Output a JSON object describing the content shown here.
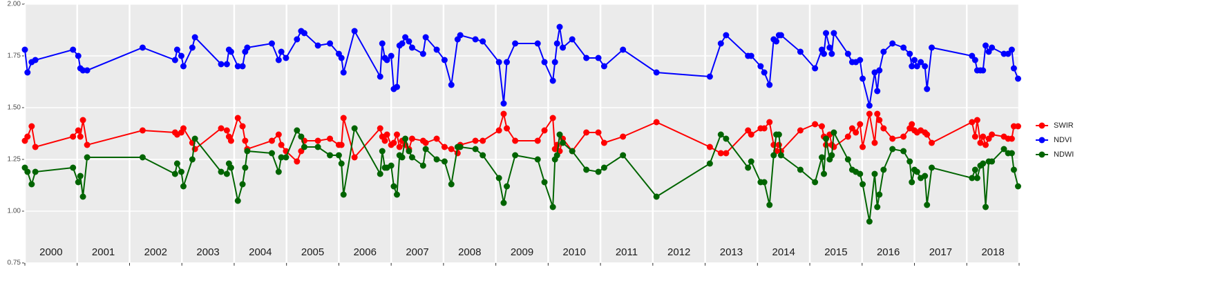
{
  "chart_data": {
    "type": "line",
    "x": [
      2000.0,
      2000.05,
      2000.13,
      2000.2,
      2000.92,
      2001.02,
      2001.06,
      2001.11,
      2001.19,
      2002.25,
      2002.87,
      2002.91,
      2002.99,
      2003.03,
      2003.2,
      2003.25,
      2003.75,
      2003.86,
      2003.9,
      2003.94,
      2004.07,
      2004.16,
      2004.21,
      2004.25,
      2004.72,
      2004.85,
      2004.9,
      2004.99,
      2005.2,
      2005.28,
      2005.34,
      2005.6,
      2005.83,
      2006.0,
      2006.05,
      2006.09,
      2006.3,
      2006.79,
      2006.83,
      2006.88,
      2006.92,
      2007.0,
      2007.05,
      2007.11,
      2007.16,
      2007.21,
      2007.27,
      2007.34,
      2007.4,
      2007.61,
      2007.66,
      2007.87,
      2008.02,
      2008.15,
      2008.27,
      2008.32,
      2008.61,
      2008.75,
      2009.06,
      2009.15,
      2009.21,
      2009.37,
      2009.8,
      2009.93,
      2010.09,
      2010.13,
      2010.17,
      2010.22,
      2010.28,
      2010.46,
      2010.73,
      2010.96,
      2011.07,
      2011.43,
      2012.07,
      2013.09,
      2013.3,
      2013.4,
      2013.82,
      2013.88,
      2014.06,
      2014.13,
      2014.23,
      2014.31,
      2014.36,
      2014.41,
      2014.45,
      2014.82,
      2015.1,
      2015.23,
      2015.27,
      2015.31,
      2015.38,
      2015.42,
      2015.46,
      2015.73,
      2015.81,
      2015.88,
      2015.96,
      2016.01,
      2016.14,
      2016.24,
      2016.29,
      2016.33,
      2016.41,
      2016.58,
      2016.79,
      2016.91,
      2016.95,
      2017.0,
      2017.05,
      2017.12,
      2017.2,
      2017.24,
      2017.33,
      2018.1,
      2018.16,
      2018.2,
      2018.26,
      2018.31,
      2018.36,
      2018.42,
      2018.48,
      2018.71,
      2018.79,
      2018.86,
      2018.9,
      2018.98
    ],
    "series": [
      {
        "name": "SWIR",
        "color": "#ff0000",
        "values": [
          1.34,
          1.36,
          1.41,
          1.31,
          1.36,
          1.39,
          1.36,
          1.44,
          1.32,
          1.39,
          1.38,
          1.37,
          1.38,
          1.4,
          1.33,
          1.3,
          1.4,
          1.39,
          1.36,
          1.34,
          1.45,
          1.41,
          1.34,
          1.3,
          1.34,
          1.37,
          1.32,
          1.29,
          1.24,
          1.29,
          1.34,
          1.34,
          1.35,
          1.32,
          1.32,
          1.45,
          1.26,
          1.4,
          1.36,
          1.34,
          1.37,
          1.32,
          1.33,
          1.37,
          1.31,
          1.34,
          1.32,
          1.3,
          1.35,
          1.34,
          1.33,
          1.35,
          1.31,
          1.3,
          1.28,
          1.32,
          1.34,
          1.34,
          1.39,
          1.47,
          1.4,
          1.34,
          1.34,
          1.39,
          1.45,
          1.3,
          1.32,
          1.29,
          1.35,
          1.29,
          1.38,
          1.38,
          1.33,
          1.36,
          1.43,
          1.31,
          1.28,
          1.28,
          1.39,
          1.37,
          1.4,
          1.4,
          1.43,
          1.32,
          1.29,
          1.32,
          1.29,
          1.39,
          1.42,
          1.41,
          1.36,
          1.32,
          1.37,
          1.32,
          1.31,
          1.36,
          1.4,
          1.38,
          1.42,
          1.31,
          1.47,
          1.33,
          1.47,
          1.44,
          1.4,
          1.35,
          1.36,
          1.4,
          1.42,
          1.39,
          1.38,
          1.39,
          1.38,
          1.37,
          1.33,
          1.43,
          1.36,
          1.44,
          1.33,
          1.36,
          1.32,
          1.35,
          1.37,
          1.36,
          1.35,
          1.35,
          1.41,
          1.41
        ]
      },
      {
        "name": "NDVI",
        "color": "#0000ff",
        "values": [
          1.78,
          1.67,
          1.72,
          1.73,
          1.78,
          1.75,
          1.69,
          1.68,
          1.68,
          1.79,
          1.73,
          1.78,
          1.75,
          1.7,
          1.79,
          1.84,
          1.71,
          1.71,
          1.78,
          1.77,
          1.7,
          1.7,
          1.77,
          1.79,
          1.81,
          1.73,
          1.77,
          1.74,
          1.83,
          1.87,
          1.86,
          1.8,
          1.81,
          1.76,
          1.74,
          1.67,
          1.87,
          1.65,
          1.81,
          1.74,
          1.73,
          1.75,
          1.59,
          1.6,
          1.8,
          1.81,
          1.84,
          1.82,
          1.79,
          1.76,
          1.84,
          1.78,
          1.73,
          1.61,
          1.83,
          1.85,
          1.83,
          1.82,
          1.72,
          1.52,
          1.72,
          1.81,
          1.81,
          1.72,
          1.63,
          1.72,
          1.81,
          1.89,
          1.79,
          1.83,
          1.74,
          1.74,
          1.7,
          1.78,
          1.67,
          1.65,
          1.81,
          1.85,
          1.75,
          1.75,
          1.7,
          1.67,
          1.61,
          1.83,
          1.82,
          1.85,
          1.85,
          1.77,
          1.69,
          1.78,
          1.76,
          1.86,
          1.79,
          1.76,
          1.86,
          1.76,
          1.72,
          1.72,
          1.73,
          1.64,
          1.51,
          1.67,
          1.58,
          1.68,
          1.77,
          1.81,
          1.79,
          1.76,
          1.7,
          1.73,
          1.7,
          1.72,
          1.7,
          1.59,
          1.79,
          1.75,
          1.73,
          1.68,
          1.68,
          1.68,
          1.8,
          1.77,
          1.79,
          1.76,
          1.76,
          1.78,
          1.69,
          1.64
        ]
      },
      {
        "name": "NDWI",
        "color": "#006400",
        "values": [
          1.21,
          1.19,
          1.13,
          1.19,
          1.21,
          1.14,
          1.17,
          1.07,
          1.26,
          1.26,
          1.18,
          1.23,
          1.19,
          1.12,
          1.25,
          1.35,
          1.19,
          1.18,
          1.23,
          1.21,
          1.05,
          1.13,
          1.21,
          1.29,
          1.28,
          1.19,
          1.26,
          1.26,
          1.39,
          1.36,
          1.31,
          1.31,
          1.27,
          1.27,
          1.23,
          1.08,
          1.4,
          1.18,
          1.29,
          1.21,
          1.21,
          1.22,
          1.12,
          1.08,
          1.27,
          1.26,
          1.35,
          1.29,
          1.26,
          1.22,
          1.3,
          1.25,
          1.24,
          1.13,
          1.31,
          1.31,
          1.3,
          1.27,
          1.16,
          1.04,
          1.12,
          1.27,
          1.25,
          1.14,
          1.02,
          1.25,
          1.27,
          1.37,
          1.33,
          1.29,
          1.2,
          1.19,
          1.21,
          1.27,
          1.07,
          1.23,
          1.37,
          1.35,
          1.21,
          1.24,
          1.14,
          1.14,
          1.03,
          1.27,
          1.37,
          1.37,
          1.27,
          1.2,
          1.14,
          1.26,
          1.18,
          1.35,
          1.25,
          1.27,
          1.38,
          1.25,
          1.2,
          1.19,
          1.18,
          1.13,
          0.95,
          1.18,
          1.02,
          1.08,
          1.2,
          1.3,
          1.29,
          1.24,
          1.14,
          1.2,
          1.19,
          1.16,
          1.17,
          1.03,
          1.21,
          1.16,
          1.2,
          1.16,
          1.22,
          1.23,
          1.02,
          1.24,
          1.24,
          1.3,
          1.28,
          1.28,
          1.2,
          1.12
        ]
      }
    ],
    "xlim": [
      2000,
      2019
    ],
    "xticks": [
      2000,
      2001,
      2002,
      2003,
      2004,
      2005,
      2006,
      2007,
      2008,
      2009,
      2010,
      2011,
      2012,
      2013,
      2014,
      2015,
      2016,
      2017,
      2018,
      2019
    ],
    "year_labels": [
      "2000",
      "2001",
      "2002",
      "2003",
      "2004",
      "2005",
      "2006",
      "2007",
      "2008",
      "2009",
      "2010",
      "2011",
      "2012",
      "2013",
      "2014",
      "2015",
      "2016",
      "2017",
      "2018"
    ],
    "ylim": [
      0.75,
      2.0
    ],
    "yticks": [
      {
        "value": 0.75,
        "label": "0.75"
      },
      {
        "value": 1.0,
        "label": "1.00"
      },
      {
        "value": 1.25,
        "label": "1.25"
      },
      {
        "value": 1.5,
        "label": "1.50"
      },
      {
        "value": 1.75,
        "label": "1.75"
      },
      {
        "value": 2.0,
        "label": "2.00"
      }
    ],
    "grid": true,
    "legend": "right"
  }
}
